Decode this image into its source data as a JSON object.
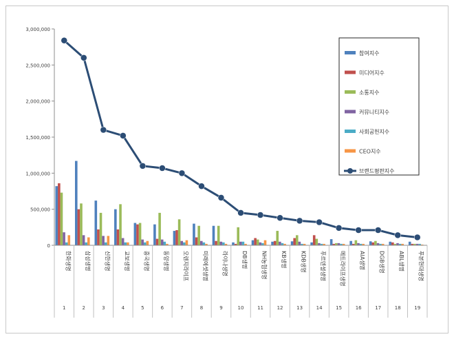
{
  "chart_data": {
    "type": "bar",
    "title": "",
    "xlabel": "",
    "ylabel": "",
    "ylim": [
      0,
      3000000
    ],
    "yticks": [
      "0",
      "500,000",
      "1,000,000",
      "1,500,000",
      "2,000,000",
      "2,500,000",
      "3,000,000"
    ],
    "ytick_values": [
      0,
      500000,
      1000000,
      1500000,
      2000000,
      2500000,
      3000000
    ],
    "grid": false,
    "legend_position": "top-right",
    "categories": [
      "한화생명",
      "삼성생명",
      "신한생명",
      "교보생명",
      "흥국생명",
      "동양생명",
      "오렌지라이프",
      "미래에셋생명",
      "라이나생명",
      "DB생명",
      "NH농협생명",
      "KB생명",
      "KDB생명",
      "푸르덴셜생명",
      "메트라이프생명",
      "AIA생명",
      "DGB생명",
      "ABL생명",
      "푸본현대생명"
    ],
    "ranks": [
      "1",
      "2",
      "3",
      "4",
      "5",
      "6",
      "7",
      "8",
      "9",
      "10",
      "11",
      "12",
      "13",
      "14",
      "15",
      "16",
      "17",
      "18",
      "19"
    ],
    "series": [
      {
        "name": "참여지수",
        "type": "bar",
        "color": "#4f81bd",
        "values": [
          820000,
          1170000,
          620000,
          500000,
          310000,
          290000,
          200000,
          300000,
          270000,
          40000,
          70000,
          50000,
          55000,
          40000,
          85000,
          60000,
          55000,
          50000,
          50000
        ]
      },
      {
        "name": "미디어지수",
        "type": "bar",
        "color": "#c0504d",
        "values": [
          860000,
          500000,
          220000,
          220000,
          290000,
          90000,
          210000,
          110000,
          60000,
          20000,
          100000,
          60000,
          100000,
          140000,
          20000,
          20000,
          40000,
          40000,
          20000
        ]
      },
      {
        "name": "소통지수",
        "type": "bar",
        "color": "#9bbb59",
        "values": [
          730000,
          580000,
          450000,
          570000,
          310000,
          450000,
          360000,
          270000,
          270000,
          250000,
          80000,
          200000,
          140000,
          90000,
          30000,
          70000,
          60000,
          20000,
          20000
        ]
      },
      {
        "name": "커뮤니티지수",
        "type": "bar",
        "color": "#8064a2",
        "values": [
          180000,
          140000,
          130000,
          100000,
          80000,
          80000,
          60000,
          60000,
          50000,
          50000,
          40000,
          50000,
          50000,
          30000,
          30000,
          30000,
          30000,
          30000,
          20000
        ]
      },
      {
        "name": "사회공헌지수",
        "type": "bar",
        "color": "#4bacc6",
        "values": [
          40000,
          40000,
          40000,
          40000,
          40000,
          50000,
          40000,
          40000,
          40000,
          50000,
          30000,
          30000,
          20000,
          20000,
          20000,
          20000,
          20000,
          20000,
          20000
        ]
      },
      {
        "name": "CEO지수",
        "type": "bar",
        "color": "#f79646",
        "values": [
          140000,
          110000,
          130000,
          40000,
          60000,
          20000,
          70000,
          20000,
          20000,
          20000,
          70000,
          20000,
          20000,
          20000,
          20000,
          20000,
          20000,
          20000,
          10000
        ]
      },
      {
        "name": "브랜드평판지수",
        "type": "line",
        "color": "#2c4d75",
        "values": [
          2840000,
          2600000,
          1600000,
          1520000,
          1100000,
          1070000,
          1000000,
          820000,
          660000,
          450000,
          420000,
          380000,
          340000,
          320000,
          240000,
          210000,
          210000,
          140000,
          110000
        ]
      }
    ]
  }
}
